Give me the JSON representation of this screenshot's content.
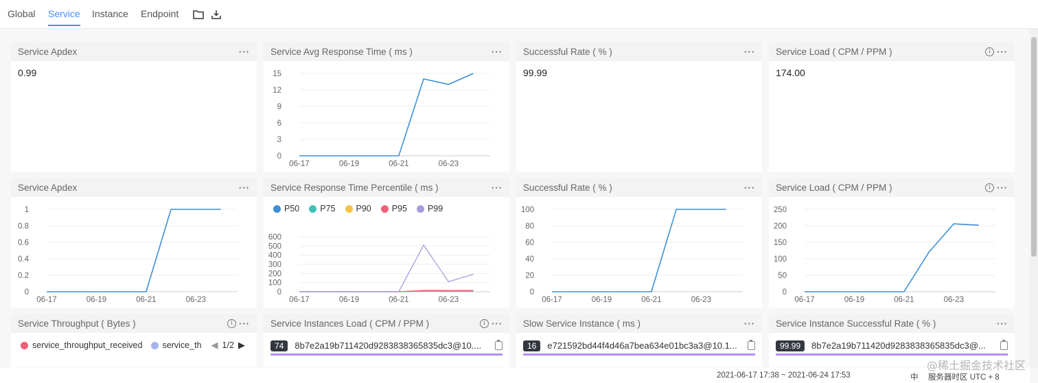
{
  "tabs": [
    {
      "label": "Global",
      "active": false
    },
    {
      "label": "Service",
      "active": true
    },
    {
      "label": "Instance",
      "active": false
    },
    {
      "label": "Endpoint",
      "active": false
    }
  ],
  "toolbar": {
    "folder_icon": "folder-icon",
    "download_icon": "download-icon"
  },
  "cards": {
    "apdex_value": {
      "title": "Service Apdex",
      "value": "0.99"
    },
    "avg_resp": {
      "title": "Service Avg Response Time ( ms )"
    },
    "success_value": {
      "title": "Successful Rate ( % )",
      "value": "99.99"
    },
    "load_value": {
      "title": "Service Load ( CPM / PPM )",
      "value": "174.00"
    },
    "apdex_chart": {
      "title": "Service Apdex"
    },
    "percentile": {
      "title": "Service Response Time Percentile ( ms )"
    },
    "success_chart": {
      "title": "Successful Rate ( % )"
    },
    "load_chart": {
      "title": "Service Load ( CPM / PPM )"
    },
    "throughput": {
      "title": "Service Throughput ( Bytes )",
      "legend": [
        "service_throughput_received",
        "service_th"
      ],
      "page": "1/2"
    },
    "instances_load": {
      "title": "Service Instances Load ( CPM / PPM )",
      "badge": "74",
      "text": "8b7e2a19b711420d9283838365835dc3@10...."
    },
    "slow_instance": {
      "title": "Slow Service Instance ( ms )",
      "badge": "16",
      "text": "e721592bd44f4d46a7bea634e01bc3a3@10.1..."
    },
    "instance_success": {
      "title": "Service Instance Successful Rate ( % )",
      "badge": "99.99",
      "text": "8b7e2a19b711420d9283838365835dc3@..."
    }
  },
  "colors": {
    "line": "#3d8fd6",
    "accent": "#448dfe",
    "p50": "#3d8fd6",
    "p75": "#3fbfb5",
    "p90": "#f5c242",
    "p95": "#f0607a",
    "p99": "#a89be0",
    "bar": "#b38ef3"
  },
  "chart_data": [
    {
      "id": "avg_resp",
      "type": "line",
      "x": [
        "06-17",
        "06-18",
        "06-19",
        "06-20",
        "06-21",
        "06-22",
        "06-23",
        "06-24"
      ],
      "x_ticks": [
        "06-17",
        "06-19",
        "06-21",
        "06-23"
      ],
      "y_ticks": [
        "0",
        "3",
        "6",
        "9",
        "12",
        "15"
      ],
      "ylim": [
        0,
        15
      ],
      "series": [
        {
          "values": [
            0,
            0,
            0,
            0,
            0,
            14,
            13,
            15
          ]
        }
      ]
    },
    {
      "id": "apdex",
      "type": "line",
      "x": [
        "06-17",
        "06-18",
        "06-19",
        "06-20",
        "06-21",
        "06-22",
        "06-23",
        "06-24"
      ],
      "x_ticks": [
        "06-17",
        "06-19",
        "06-21",
        "06-23"
      ],
      "y_ticks": [
        "0",
        "0.2",
        "0.4",
        "0.6",
        "0.8",
        "1"
      ],
      "ylim": [
        0,
        1
      ],
      "series": [
        {
          "values": [
            0,
            0,
            0,
            0,
            0,
            1,
            1,
            1
          ]
        }
      ]
    },
    {
      "id": "percentile",
      "type": "line",
      "x": [
        "06-17",
        "06-18",
        "06-19",
        "06-20",
        "06-21",
        "06-22",
        "06-23",
        "06-24"
      ],
      "x_ticks": [
        "06-17",
        "06-19",
        "06-21",
        "06-23"
      ],
      "y_ticks": [
        "0",
        "100",
        "200",
        "300",
        "400",
        "500",
        "600"
      ],
      "ylim": [
        0,
        600
      ],
      "series": [
        {
          "name": "P50",
          "values": [
            0,
            0,
            0,
            0,
            0,
            5,
            4,
            5
          ]
        },
        {
          "name": "P75",
          "values": [
            0,
            0,
            0,
            0,
            0,
            8,
            7,
            8
          ]
        },
        {
          "name": "P90",
          "values": [
            0,
            0,
            0,
            0,
            0,
            12,
            11,
            12
          ]
        },
        {
          "name": "P95",
          "values": [
            0,
            0,
            0,
            0,
            0,
            15,
            14,
            15
          ]
        },
        {
          "name": "P99",
          "values": [
            0,
            0,
            0,
            0,
            0,
            510,
            110,
            190
          ]
        }
      ]
    },
    {
      "id": "success",
      "type": "line",
      "x": [
        "06-17",
        "06-18",
        "06-19",
        "06-20",
        "06-21",
        "06-22",
        "06-23",
        "06-24"
      ],
      "x_ticks": [
        "06-17",
        "06-19",
        "06-21",
        "06-23"
      ],
      "y_ticks": [
        "0",
        "20",
        "40",
        "60",
        "80",
        "100"
      ],
      "ylim": [
        0,
        100
      ],
      "series": [
        {
          "values": [
            0,
            0,
            0,
            0,
            0,
            100,
            100,
            100
          ]
        }
      ]
    },
    {
      "id": "load",
      "type": "line",
      "x": [
        "06-17",
        "06-18",
        "06-19",
        "06-20",
        "06-21",
        "06-22",
        "06-23",
        "06-24"
      ],
      "x_ticks": [
        "06-17",
        "06-19",
        "06-21",
        "06-23"
      ],
      "y_ticks": [
        "0",
        "50",
        "100",
        "150",
        "200",
        "250"
      ],
      "ylim": [
        0,
        250
      ],
      "series": [
        {
          "values": [
            0,
            0,
            0,
            0,
            0,
            120,
            206,
            202
          ]
        }
      ]
    }
  ],
  "footer": {
    "time_range": "2021-06-17 17:38 ~ 2021-06-24 17:53",
    "lang": "中",
    "timezone": "服务器时区 UTC + 8"
  },
  "watermark": "@稀土掘金技术社区"
}
